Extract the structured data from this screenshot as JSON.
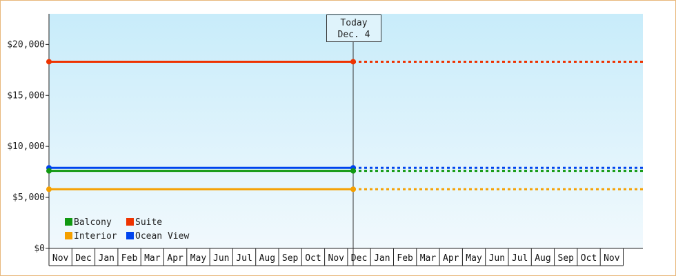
{
  "chart_data": {
    "type": "line",
    "ylim": [
      0,
      23000
    ],
    "yticks": [
      {
        "value": 0,
        "label": "$0"
      },
      {
        "value": 5000,
        "label": "$5,000"
      },
      {
        "value": 10000,
        "label": "$10,000"
      },
      {
        "value": 15000,
        "label": "$15,000"
      },
      {
        "value": 20000,
        "label": "$20,000"
      }
    ],
    "months": [
      "Nov",
      "Dec",
      "Jan",
      "Feb",
      "Mar",
      "Apr",
      "May",
      "Jun",
      "Jul",
      "Aug",
      "Sep",
      "Oct",
      "Nov",
      "Dec",
      "Jan",
      "Feb",
      "Mar",
      "Apr",
      "May",
      "Jun",
      "Jul",
      "Aug",
      "Sep",
      "Oct",
      "Nov"
    ],
    "today": {
      "line1": "Today",
      "line2": "Dec. 4"
    },
    "series": [
      {
        "name": "Suite",
        "color": "#ee3300",
        "value": 18300
      },
      {
        "name": "Ocean View",
        "color": "#0044ee",
        "value": 7900
      },
      {
        "name": "Balcony",
        "color": "#119911",
        "value": 7600
      },
      {
        "name": "Interior",
        "color": "#f5a000",
        "value": 5800
      }
    ],
    "legend": [
      {
        "name": "Balcony",
        "color": "#119911"
      },
      {
        "name": "Suite",
        "color": "#ee3300"
      },
      {
        "name": "Interior",
        "color": "#f5a000"
      },
      {
        "name": "Ocean View",
        "color": "#0044ee"
      }
    ]
  }
}
